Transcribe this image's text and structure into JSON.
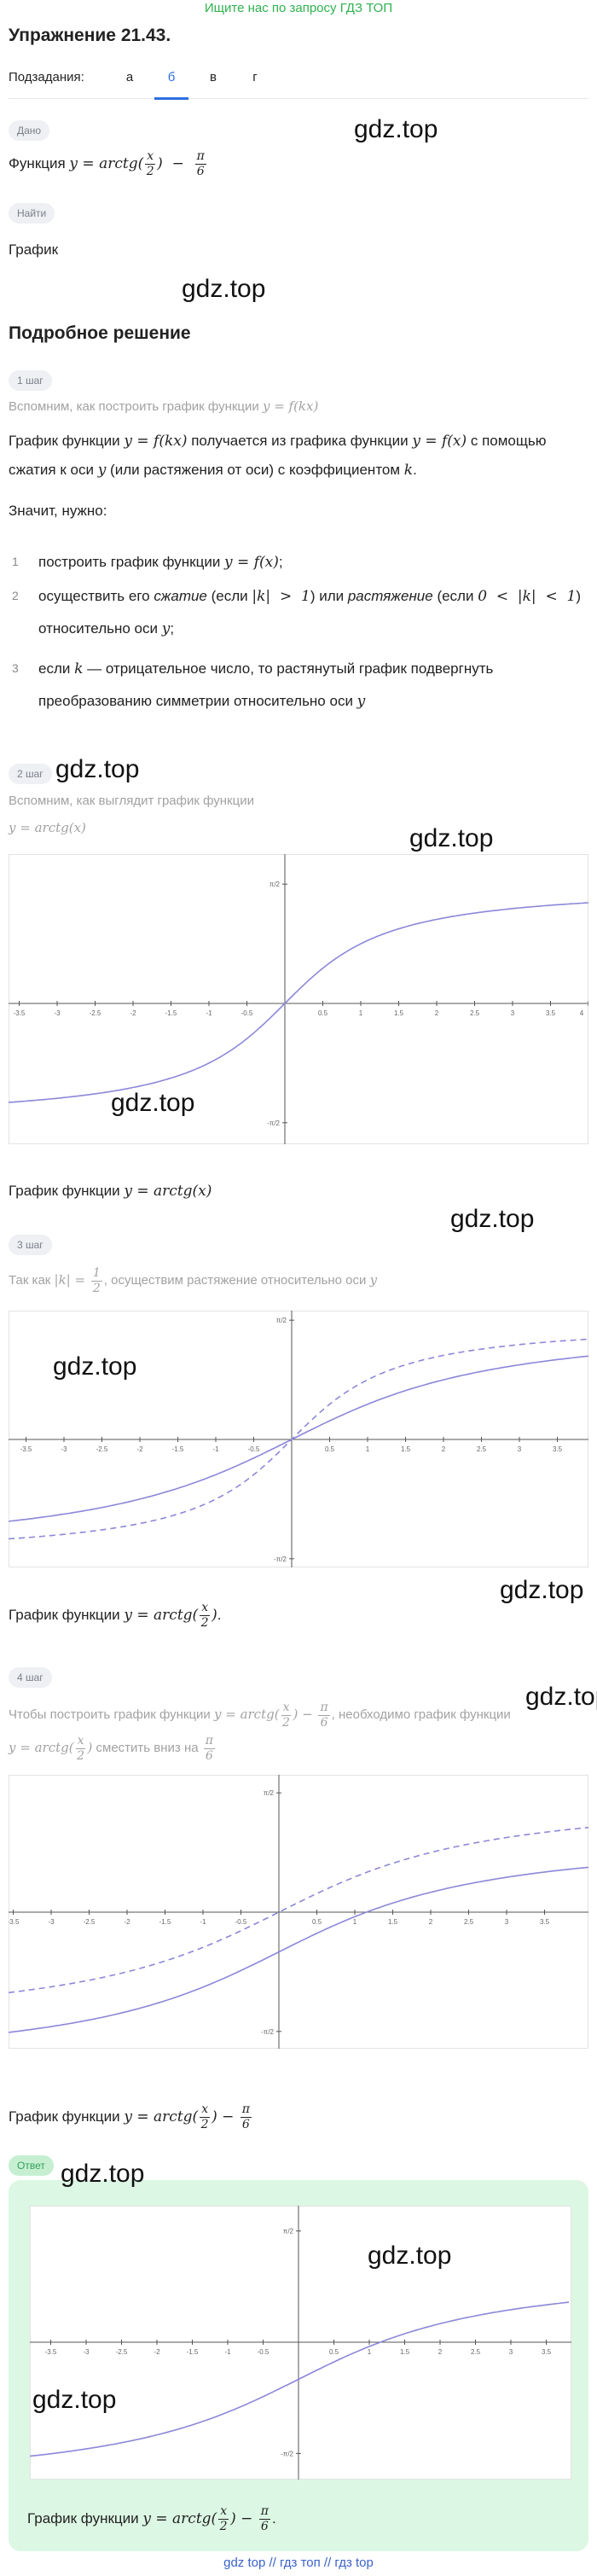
{
  "banner": "Ищите нас по запросу ГДЗ ТОП",
  "title": "Упражнение 21.43.",
  "subtasks": {
    "label": "Подзадания:",
    "items": [
      "а",
      "б",
      "в",
      "г"
    ],
    "active": 1
  },
  "watermark": "gdz.top",
  "given": {
    "badge": "Дано",
    "text": [
      "Функция ",
      {
        "m": "y = arctg("
      },
      {
        "n": "x",
        "d": "2"
      },
      {
        "m": ")  −  "
      },
      {
        "n": "π",
        "d": "6"
      }
    ]
  },
  "find": {
    "badge": "Найти",
    "text": "График"
  },
  "solution_title": "Подробное решение",
  "step1": {
    "badge": "1 шаг",
    "hint": [
      "Вспомним, как построить график функции ",
      {
        "m": "y = f(kx)"
      }
    ],
    "paragraph": [
      "График функции ",
      {
        "m": "y = f(kx)"
      },
      " получается из графика функции ",
      {
        "m": "y = f(x)"
      },
      " с помощью сжатия к оси ",
      {
        "m": "y"
      },
      " (или растяжения от оси) с коэффициентом ",
      {
        "m": "k"
      },
      "."
    ],
    "lead": "Значит, нужно:",
    "list": [
      {
        "num": "1",
        "text": [
          "построить график функции ",
          {
            "m": "y = f(x)"
          },
          ";"
        ]
      },
      {
        "num": "2",
        "text": [
          "осуществить его ",
          {
            "i": "сжатие"
          },
          " (если ",
          {
            "m": "|k|  >  1"
          },
          ") или ",
          {
            "i": "растяжение"
          },
          " (если ",
          {
            "m": "0  <  |k|  <  1"
          },
          ") относительно оси ",
          {
            "m": "y"
          },
          ";"
        ]
      },
      {
        "num": "3",
        "text": [
          "если ",
          {
            "m": "k"
          },
          " — отрицательное число, то растянутый график подвергнуть преобразованию симметрии относительно оси ",
          {
            "m": "y"
          }
        ]
      }
    ]
  },
  "step2": {
    "badge": "2 шаг",
    "hint": [
      "Вспомним, как выглядит график функции"
    ],
    "hint2": [
      {
        "m": "y = arctg(x)"
      }
    ],
    "graph": {
      "x_labels": [
        "-3.5",
        "-3",
        "-2.5",
        "-2",
        "-1.5",
        "-1",
        "-0.5",
        "0.5",
        "1",
        "1.5",
        "2",
        "2.5",
        "3",
        "3.5",
        "4"
      ],
      "y_labels": [
        "π/2",
        "-π/2"
      ]
    },
    "caption": [
      "График функции ",
      {
        "m": "y = arctg(x)"
      }
    ]
  },
  "step3": {
    "badge": "3 шаг",
    "hint": [
      "Так как ",
      {
        "m": "|k| = "
      },
      {
        "n": "1",
        "d": "2"
      },
      ", осуществим растяжение относительно оси ",
      {
        "m": "y"
      }
    ],
    "graph": {
      "x_labels": [
        "-3.5",
        "-3",
        "-2.5",
        "-2",
        "-1.5",
        "-1",
        "-0.5",
        "0.5",
        "1",
        "1.5",
        "2",
        "2.5",
        "3",
        "3.5"
      ],
      "y_labels": [
        "π/2",
        "-π/2"
      ]
    },
    "caption": [
      "График функции ",
      {
        "m": "y = arctg("
      },
      {
        "n": "x",
        "d": "2"
      },
      {
        "m": ")"
      },
      "."
    ]
  },
  "step4": {
    "badge": "4 шаг",
    "hint": [
      "Чтобы построить график функции ",
      {
        "m": "y = arctg("
      },
      {
        "n": "x",
        "d": "2"
      },
      {
        "m": ") − "
      },
      {
        "n": "π",
        "d": "6"
      },
      ", необходимо график функции ",
      {
        "m": "y = arctg("
      },
      {
        "n": "x",
        "d": "2"
      },
      {
        "m": ")"
      },
      " сместить вниз на ",
      {
        "n": "π",
        "d": "6"
      }
    ],
    "graph": {
      "x_labels": [
        "-3.5",
        "-3",
        "-2.5",
        "-2",
        "-1.5",
        "-1",
        "-0.5",
        "0.5",
        "1",
        "1.5",
        "2",
        "2.5",
        "3",
        "3.5"
      ],
      "y_labels": [
        "π/2",
        "-π/2"
      ]
    },
    "caption": [
      "График функции ",
      {
        "m": "y = arctg("
      },
      {
        "n": "x",
        "d": "2"
      },
      {
        "m": ") − "
      },
      {
        "n": "π",
        "d": "6"
      }
    ]
  },
  "answer": {
    "badge": "Ответ",
    "graph": {
      "x_labels": [
        "-3.5",
        "-3",
        "-2.5",
        "-2",
        "-1.5",
        "-1",
        "-0.5",
        "0.5",
        "1",
        "1.5",
        "2",
        "2.5",
        "3",
        "3.5"
      ],
      "y_labels": [
        "π/2",
        "-π/2"
      ]
    },
    "caption": [
      "График функции ",
      {
        "m": "y = arctg("
      },
      {
        "n": "x",
        "d": "2"
      },
      {
        "m": ") − "
      },
      {
        "n": "π",
        "d": "6"
      },
      "."
    ]
  },
  "footer": "gdz top // гдз топ // гдз top"
}
